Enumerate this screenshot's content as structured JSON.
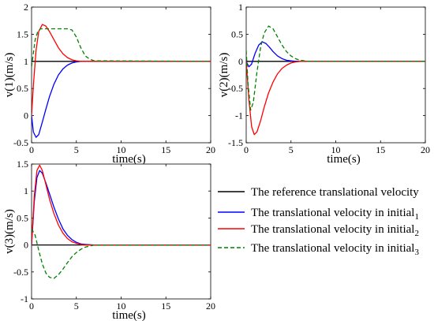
{
  "chart_data": [
    {
      "type": "line",
      "xlabel": "time(s)",
      "ylabel": "v(1)(m/s)",
      "xlim": [
        0,
        20
      ],
      "ylim": [
        -0.5,
        2
      ],
      "xticks": [
        0,
        5,
        10,
        15,
        20
      ],
      "yticks": [
        -0.5,
        0,
        0.5,
        1,
        1.5,
        2
      ],
      "grid": false,
      "series": [
        {
          "name": "The reference translational velocity",
          "color": "#000000",
          "style": "solid",
          "x": [
            0,
            20
          ],
          "y": [
            1,
            1
          ]
        },
        {
          "name": "The translational velocity in initial_1",
          "color": "#0000ff",
          "style": "solid",
          "x": [
            0,
            0.2,
            0.5,
            0.8,
            1.2,
            1.6,
            2,
            2.5,
            3,
            3.5,
            4,
            4.5,
            5,
            5.5,
            6,
            7,
            20
          ],
          "y": [
            0,
            -0.3,
            -0.4,
            -0.35,
            -0.12,
            0.12,
            0.35,
            0.58,
            0.75,
            0.86,
            0.93,
            0.97,
            0.99,
            1.0,
            1.0,
            1.0,
            1.0
          ]
        },
        {
          "name": "The translational velocity in initial_2",
          "color": "#ff0000",
          "style": "solid",
          "x": [
            0,
            0.2,
            0.5,
            0.8,
            1.2,
            1.6,
            2,
            2.5,
            3,
            3.5,
            4,
            4.5,
            5,
            5.5,
            6,
            7,
            20
          ],
          "y": [
            0,
            0.55,
            1.2,
            1.55,
            1.68,
            1.65,
            1.55,
            1.4,
            1.25,
            1.14,
            1.07,
            1.03,
            1.01,
            1.0,
            1.0,
            1.0,
            1.0
          ]
        },
        {
          "name": "The translational velocity in initial_3",
          "color": "#008000",
          "style": "dashed",
          "x": [
            0,
            0.2,
            0.4,
            0.7,
            1,
            1.5,
            2,
            2.5,
            3,
            3.5,
            4,
            4.5,
            5,
            5.5,
            6,
            6.5,
            7,
            20
          ],
          "y": [
            0.9,
            1.15,
            1.4,
            1.55,
            1.6,
            1.6,
            1.6,
            1.6,
            1.6,
            1.6,
            1.6,
            1.58,
            1.45,
            1.25,
            1.1,
            1.04,
            1.01,
            1.0
          ]
        }
      ]
    },
    {
      "type": "line",
      "xlabel": "time(s)",
      "ylabel": "v(2)(m/s)",
      "xlim": [
        0,
        20
      ],
      "ylim": [
        -1.5,
        1
      ],
      "xticks": [
        0,
        5,
        10,
        15,
        20
      ],
      "yticks": [
        -1.5,
        -1,
        -0.5,
        0,
        0.5,
        1
      ],
      "grid": false,
      "series": [
        {
          "name": "The reference translational velocity",
          "color": "#000000",
          "style": "solid",
          "x": [
            0,
            20
          ],
          "y": [
            0,
            0
          ]
        },
        {
          "name": "The translational velocity in initial_1",
          "color": "#0000ff",
          "style": "solid",
          "x": [
            0,
            0.3,
            0.6,
            1,
            1.4,
            1.8,
            2.2,
            2.6,
            3,
            3.5,
            4,
            4.5,
            5,
            5.5,
            6,
            20
          ],
          "y": [
            0,
            -0.1,
            -0.05,
            0.15,
            0.3,
            0.36,
            0.33,
            0.26,
            0.18,
            0.1,
            0.05,
            0.02,
            0.01,
            0,
            0,
            0
          ]
        },
        {
          "name": "The translational velocity in initial_2",
          "color": "#ff0000",
          "style": "solid",
          "x": [
            0,
            0.3,
            0.6,
            0.9,
            1.2,
            1.6,
            2,
            2.5,
            3,
            3.5,
            4,
            4.5,
            5,
            5.5,
            6,
            7,
            20
          ],
          "y": [
            0,
            -0.7,
            -1.2,
            -1.35,
            -1.3,
            -1.1,
            -0.85,
            -0.58,
            -0.38,
            -0.23,
            -0.13,
            -0.07,
            -0.03,
            -0.01,
            0,
            0,
            0
          ]
        },
        {
          "name": "The translational velocity in initial_3",
          "color": "#008000",
          "style": "dashed",
          "x": [
            0,
            0.2,
            0.5,
            0.8,
            1.2,
            1.6,
            2,
            2.5,
            3,
            3.5,
            4,
            4.5,
            5,
            5.5,
            6,
            6.5,
            7,
            20
          ],
          "y": [
            0.2,
            -0.4,
            -0.9,
            -0.75,
            -0.2,
            0.25,
            0.52,
            0.65,
            0.6,
            0.45,
            0.3,
            0.18,
            0.1,
            0.05,
            0.02,
            0.01,
            0,
            0
          ]
        }
      ]
    },
    {
      "type": "line",
      "xlabel": "time(s)",
      "ylabel": "v(3)(m/s)",
      "xlim": [
        0,
        20
      ],
      "ylim": [
        -1,
        1.5
      ],
      "xticks": [
        0,
        5,
        10,
        15,
        20
      ],
      "yticks": [
        -1,
        -0.5,
        0,
        0.5,
        1,
        1.5
      ],
      "grid": false,
      "series": [
        {
          "name": "The reference translational velocity",
          "color": "#000000",
          "style": "solid",
          "x": [
            0,
            20
          ],
          "y": [
            0,
            0
          ]
        },
        {
          "name": "The translational velocity in initial_1",
          "color": "#0000ff",
          "style": "solid",
          "x": [
            0,
            0.3,
            0.6,
            0.9,
            1.2,
            1.6,
            2,
            2.5,
            3,
            3.5,
            4,
            4.5,
            5,
            5.5,
            6,
            7,
            20
          ],
          "y": [
            0,
            0.8,
            1.25,
            1.38,
            1.33,
            1.15,
            0.95,
            0.7,
            0.48,
            0.3,
            0.18,
            0.1,
            0.05,
            0.02,
            0.01,
            0,
            0
          ]
        },
        {
          "name": "The translational velocity in initial_2",
          "color": "#ff0000",
          "style": "solid",
          "x": [
            0,
            0.3,
            0.6,
            0.9,
            1.2,
            1.6,
            2,
            2.5,
            3,
            3.5,
            4,
            4.5,
            5,
            5.5,
            6,
            7,
            20
          ],
          "y": [
            0,
            0.9,
            1.38,
            1.48,
            1.38,
            1.12,
            0.85,
            0.58,
            0.37,
            0.22,
            0.12,
            0.06,
            0.03,
            0.01,
            0,
            0,
            0
          ]
        },
        {
          "name": "The translational velocity in initial_3",
          "color": "#008000",
          "style": "dashed",
          "x": [
            0,
            0.4,
            0.8,
            1.2,
            1.6,
            2,
            2.5,
            3,
            3.5,
            4,
            4.5,
            5,
            5.5,
            6,
            6.5,
            7,
            20
          ],
          "y": [
            0.3,
            0.18,
            -0.1,
            -0.35,
            -0.52,
            -0.6,
            -0.62,
            -0.55,
            -0.45,
            -0.33,
            -0.22,
            -0.14,
            -0.08,
            -0.04,
            -0.02,
            0,
            0
          ]
        }
      ]
    }
  ],
  "legend": {
    "entries": [
      {
        "text": "The reference translational velocity",
        "sub": "",
        "color": "#000000",
        "style": "solid"
      },
      {
        "text": "The translational velocity in initial",
        "sub": "1",
        "color": "#0000ff",
        "style": "solid"
      },
      {
        "text": "The translational velocity in initial",
        "sub": "2",
        "color": "#ff0000",
        "style": "solid"
      },
      {
        "text": "The translational velocity in initial",
        "sub": "3",
        "color": "#008000",
        "style": "dashed"
      }
    ]
  }
}
